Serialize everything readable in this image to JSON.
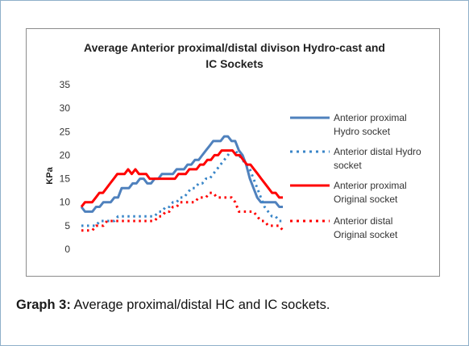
{
  "chart_data": {
    "type": "line",
    "title_line1": "Average Anterior proximal/distal divison Hydro-cast and",
    "title_line2": "IC Sockets",
    "xlabel": "",
    "ylabel": "KPa",
    "ylim": [
      0,
      35
    ],
    "yticks": [
      "0",
      "5",
      "10",
      "15",
      "20",
      "25",
      "30",
      "35"
    ],
    "grid": false,
    "legend_position": "right",
    "series": [
      {
        "name_line1": "Anterior proximal",
        "name_line2": "Hydro socket",
        "color": "#4f81bd",
        "style": "solid",
        "values": [
          9,
          8,
          8,
          8,
          9,
          9,
          10,
          10,
          10,
          11,
          11,
          13,
          13,
          13,
          14,
          14,
          15,
          15,
          14,
          14,
          15,
          15,
          16,
          16,
          16,
          16,
          17,
          17,
          17,
          18,
          18,
          19,
          19,
          20,
          21,
          22,
          23,
          23,
          23,
          24,
          24,
          23,
          23,
          21,
          20,
          18,
          15,
          13,
          11,
          10,
          10,
          10,
          10,
          10,
          9,
          9
        ]
      },
      {
        "name_line1": "Anterior distal Hydro",
        "name_line2": "socket",
        "color": "#3a86c8",
        "style": "dotted",
        "values": [
          5,
          5,
          5,
          5,
          5,
          6,
          6,
          6,
          6,
          6,
          7,
          7,
          7,
          7,
          7,
          7,
          7,
          7,
          7,
          7,
          7,
          8,
          8,
          9,
          9,
          10,
          10,
          11,
          11,
          12,
          13,
          13,
          14,
          14,
          15,
          15,
          16,
          17,
          18,
          19,
          20,
          21,
          21,
          20,
          19,
          18,
          17,
          15,
          13,
          11,
          9,
          8,
          7,
          7,
          6,
          6
        ]
      },
      {
        "name_line1": "Anterior proximal",
        "name_line2": "Original socket",
        "color": "#ff0000",
        "style": "solid",
        "values": [
          9,
          10,
          10,
          10,
          11,
          12,
          12,
          13,
          14,
          15,
          16,
          16,
          16,
          17,
          16,
          17,
          16,
          16,
          16,
          15,
          15,
          15,
          15,
          15,
          15,
          15,
          15,
          16,
          16,
          16,
          17,
          17,
          17,
          18,
          18,
          19,
          19,
          20,
          20,
          21,
          21,
          21,
          21,
          20,
          20,
          19,
          18,
          18,
          17,
          16,
          15,
          14,
          13,
          12,
          12,
          11,
          11
        ]
      },
      {
        "name_line1": "Anterior distal",
        "name_line2": "Original socket",
        "color": "#ff0000",
        "style": "dotted",
        "values": [
          4,
          4,
          4,
          4,
          5,
          5,
          5,
          6,
          6,
          6,
          6,
          6,
          6,
          6,
          6,
          6,
          6,
          6,
          6,
          6,
          6,
          7,
          7,
          8,
          8,
          9,
          9,
          10,
          10,
          10,
          10,
          10,
          11,
          11,
          11,
          12,
          12,
          11,
          11,
          11,
          11,
          11,
          10,
          8,
          8,
          8,
          8,
          8,
          7,
          6,
          6,
          5,
          5,
          5,
          5,
          4
        ]
      }
    ]
  },
  "caption": {
    "label": "Graph 3:",
    "text": " Average proximal/distal HC and IC sockets."
  }
}
